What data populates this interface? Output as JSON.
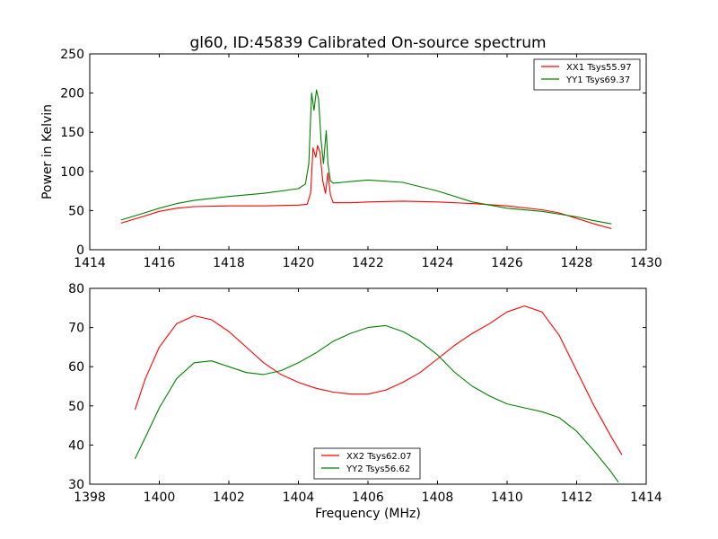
{
  "chart_data": [
    {
      "type": "line",
      "title": "gl60, ID:45839 Calibrated On-source spectrum",
      "xlabel": "",
      "ylabel": "Power in Kelvin",
      "xlim": [
        1414,
        1430
      ],
      "ylim": [
        0,
        250
      ],
      "xticks": [
        1414,
        1416,
        1418,
        1420,
        1422,
        1424,
        1426,
        1428,
        1430
      ],
      "yticks": [
        0,
        50,
        100,
        150,
        200,
        250
      ],
      "legend_position": "top-right",
      "series": [
        {
          "name": "XX1 Tsys55.97",
          "color": "#ff0000",
          "x": [
            1414.9,
            1415.5,
            1416.0,
            1416.5,
            1417.0,
            1418.0,
            1419.0,
            1420.0,
            1420.25,
            1420.35,
            1420.42,
            1420.5,
            1420.55,
            1420.62,
            1420.7,
            1420.78,
            1420.85,
            1420.92,
            1421.0,
            1421.5,
            1422.0,
            1423.0,
            1424.0,
            1425.0,
            1426.0,
            1427.0,
            1427.5,
            1428.0,
            1428.5,
            1429.0
          ],
          "y": [
            34,
            42,
            49,
            53,
            55,
            56,
            56,
            57,
            58,
            72,
            130,
            118,
            133,
            125,
            88,
            72,
            98,
            70,
            60,
            60,
            61,
            62,
            61,
            59,
            56,
            51,
            47,
            40,
            33,
            27
          ]
        },
        {
          "name": "YY1 Tsys69.37",
          "color": "#008000",
          "x": [
            1414.9,
            1415.5,
            1416.0,
            1416.5,
            1417.0,
            1418.0,
            1419.0,
            1420.0,
            1420.2,
            1420.3,
            1420.38,
            1420.45,
            1420.52,
            1420.58,
            1420.65,
            1420.72,
            1420.8,
            1420.85,
            1420.92,
            1421.0,
            1421.5,
            1422.0,
            1423.0,
            1424.0,
            1425.0,
            1426.0,
            1427.0,
            1428.0,
            1428.5,
            1429.0
          ],
          "y": [
            38,
            46,
            53,
            59,
            63,
            68,
            72,
            78,
            84,
            110,
            200,
            178,
            204,
            192,
            140,
            110,
            152,
            110,
            88,
            85,
            87,
            89,
            86,
            75,
            61,
            53,
            49,
            42,
            37,
            33
          ]
        }
      ]
    },
    {
      "type": "line",
      "title": "",
      "xlabel": "Frequency (MHz)",
      "ylabel": "",
      "xlim": [
        1398,
        1414
      ],
      "ylim": [
        30,
        80
      ],
      "xticks": [
        1398,
        1400,
        1402,
        1404,
        1406,
        1408,
        1410,
        1412,
        1414
      ],
      "yticks": [
        30,
        40,
        50,
        60,
        70,
        80
      ],
      "legend_position": "bottom-center",
      "series": [
        {
          "name": "XX2 Tsys62.07",
          "color": "#ff0000",
          "x": [
            1399.3,
            1399.6,
            1400.0,
            1400.5,
            1401.0,
            1401.5,
            1402.0,
            1402.5,
            1403.0,
            1403.5,
            1404.0,
            1404.5,
            1405.0,
            1405.5,
            1406.0,
            1406.5,
            1407.0,
            1407.5,
            1408.0,
            1408.5,
            1409.0,
            1409.5,
            1410.0,
            1410.5,
            1411.0,
            1411.5,
            1412.0,
            1412.5,
            1413.0,
            1413.3
          ],
          "y": [
            49,
            57,
            65,
            71,
            73,
            72,
            69,
            65,
            61,
            58,
            56,
            54.5,
            53.5,
            53,
            53,
            54,
            56,
            58.5,
            62,
            65.5,
            68.5,
            71,
            74,
            75.5,
            74,
            68,
            59,
            50,
            42,
            37.5
          ]
        },
        {
          "name": "YY2 Tsys56.62",
          "color": "#008000",
          "x": [
            1399.3,
            1399.6,
            1400.0,
            1400.5,
            1401.0,
            1401.5,
            1402.0,
            1402.5,
            1403.0,
            1403.5,
            1404.0,
            1404.5,
            1405.0,
            1405.5,
            1406.0,
            1406.5,
            1407.0,
            1407.5,
            1408.0,
            1408.5,
            1409.0,
            1409.5,
            1410.0,
            1410.5,
            1411.0,
            1411.5,
            1412.0,
            1412.5,
            1413.0,
            1413.2
          ],
          "y": [
            36.5,
            42,
            49.5,
            57,
            61,
            61.5,
            60,
            58.5,
            58,
            59,
            61,
            63.5,
            66.5,
            68.5,
            70,
            70.5,
            69,
            66.5,
            63,
            58.5,
            55,
            52.5,
            50.5,
            49.5,
            48.5,
            47,
            43.5,
            38.5,
            33,
            30.5
          ]
        }
      ]
    }
  ]
}
